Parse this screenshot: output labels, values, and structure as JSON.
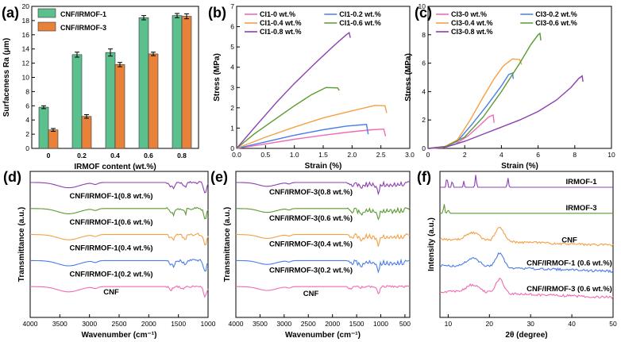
{
  "chart_data": [
    {
      "panel": "(a)",
      "type": "bar",
      "categories": [
        "0",
        "0.2",
        "0.4",
        "0.6",
        "0.8"
      ],
      "series": [
        {
          "name": "CNF/IRMOF-1",
          "color": "#5cc08e",
          "values": [
            5.8,
            13.2,
            13.5,
            18.4,
            18.7
          ],
          "errors": [
            0.2,
            0.35,
            0.5,
            0.3,
            0.3
          ]
        },
        {
          "name": "CNF/IRMOF-3",
          "color": "#e8823a",
          "values": [
            2.6,
            4.5,
            11.8,
            13.3,
            18.6
          ],
          "errors": [
            0.2,
            0.25,
            0.3,
            0.25,
            0.35
          ]
        }
      ],
      "xlabel": "IRMOF content (wt.%)",
      "ylabel": "Surfaceness  Ra (μm)",
      "ylim": [
        0,
        20
      ],
      "yticks": [
        "0",
        "2",
        "4",
        "6",
        "8",
        "10",
        "12",
        "14",
        "16",
        "18",
        "20"
      ]
    },
    {
      "panel": "(b)",
      "type": "line",
      "xlabel": "Strain (%)",
      "ylabel": "Stress (MPa)",
      "xlim": [
        0,
        3.0
      ],
      "ylim": [
        0,
        7
      ],
      "xticks": [
        "0.0",
        "0.5",
        "1.0",
        "1.5",
        "2.0",
        "2.5",
        "3.0"
      ],
      "yticks": [
        "0",
        "1",
        "2",
        "3",
        "4",
        "5",
        "6",
        "7"
      ],
      "series": [
        {
          "name": "CI1-0 wt.%",
          "color": "#f06bb5",
          "x": [
            0,
            0.5,
            1.0,
            1.5,
            2.0,
            2.35,
            2.55,
            2.58
          ],
          "y": [
            0,
            0.22,
            0.45,
            0.65,
            0.82,
            0.92,
            0.95,
            0.6
          ]
        },
        {
          "name": "CI1-0.2 wt.%",
          "color": "#4a7de8",
          "x": [
            0,
            0.5,
            1.0,
            1.5,
            1.9,
            2.25,
            2.28
          ],
          "y": [
            0,
            0.32,
            0.65,
            0.92,
            1.1,
            1.18,
            0.7
          ]
        },
        {
          "name": "CI1-0.4 wt.%",
          "color": "#f5a044",
          "x": [
            0,
            0.5,
            1.0,
            1.5,
            2.0,
            2.4,
            2.57,
            2.6
          ],
          "y": [
            0,
            0.55,
            1.05,
            1.5,
            1.85,
            2.12,
            2.1,
            1.75
          ]
        },
        {
          "name": "CI1-0.6 wt.%",
          "color": "#5a9a32",
          "x": [
            0,
            0.3,
            0.7,
            1.0,
            1.3,
            1.55,
            1.75,
            1.78
          ],
          "y": [
            0,
            0.7,
            1.5,
            2.1,
            2.65,
            3.0,
            2.98,
            2.85
          ]
        },
        {
          "name": "CI1-0.8 wt.%",
          "color": "#8b3fb0",
          "x": [
            0,
            0.3,
            0.7,
            1.0,
            1.4,
            1.7,
            1.9,
            1.95,
            1.97
          ],
          "y": [
            0,
            1.0,
            2.3,
            3.2,
            4.3,
            5.1,
            5.6,
            5.7,
            5.45
          ]
        }
      ]
    },
    {
      "panel": "(c)",
      "type": "line",
      "xlabel": "Strain (%)",
      "ylabel": "Stress (MPa)",
      "xlim": [
        0,
        10
      ],
      "ylim": [
        0,
        10
      ],
      "xticks": [
        "0",
        "2",
        "4",
        "6",
        "8",
        "10"
      ],
      "yticks": [
        "0",
        "2",
        "4",
        "6",
        "8",
        "10"
      ],
      "series": [
        {
          "name": "CI3-0 wt.%",
          "color": "#f06bb5",
          "x": [
            0,
            0.8,
            1.5,
            2.2,
            2.8,
            3.3,
            3.55,
            3.6
          ],
          "y": [
            0,
            0.05,
            0.3,
            0.9,
            1.6,
            2.2,
            2.35,
            1.8
          ]
        },
        {
          "name": "CI3-0.2 wt.%",
          "color": "#4a7de8",
          "x": [
            0,
            0.8,
            1.6,
            2.4,
            3.2,
            4.0,
            4.4,
            4.6,
            4.65
          ],
          "y": [
            0,
            0.05,
            0.5,
            1.7,
            3.0,
            4.4,
            5.2,
            5.3,
            4.9
          ]
        },
        {
          "name": "CI3-0.4 wt.%",
          "color": "#f5a044",
          "x": [
            0,
            0.8,
            1.6,
            2.3,
            3.0,
            3.6,
            4.1,
            4.6,
            5.0,
            5.1
          ],
          "y": [
            0,
            0.05,
            0.6,
            2.0,
            3.6,
            4.9,
            5.8,
            6.3,
            6.25,
            5.9
          ]
        },
        {
          "name": "CI3-0.6 wt.%",
          "color": "#5a9a32",
          "x": [
            0,
            1.0,
            2.0,
            3.0,
            4.0,
            5.0,
            5.6,
            6.0,
            6.1,
            6.15
          ],
          "y": [
            0,
            0.15,
            0.8,
            2.2,
            4.0,
            6.0,
            7.3,
            8.0,
            8.1,
            7.6
          ]
        },
        {
          "name": "CI3-0.8 wt.%",
          "color": "#8b3fb0",
          "x": [
            0,
            1.0,
            2.0,
            3.0,
            4.0,
            5.0,
            6.0,
            7.0,
            7.8,
            8.2,
            8.4,
            8.45
          ],
          "y": [
            0,
            0.1,
            0.5,
            1.0,
            1.5,
            2.0,
            2.6,
            3.4,
            4.3,
            4.9,
            5.1,
            4.7
          ]
        }
      ]
    },
    {
      "panel": "(d)",
      "type": "line",
      "xlabel": "Wavenumber (cm⁻¹)",
      "ylabel": "Transmittance (a.u.)",
      "xlim": [
        4000,
        1000
      ],
      "xticks": [
        "4000",
        "3500",
        "3000",
        "2500",
        "2000",
        "1500",
        "1000"
      ],
      "series": [
        {
          "name": "CNF/IRMOF-1(0.8 wt.%)",
          "color": "#8b3fb0"
        },
        {
          "name": "CNF/IRMOF-1(0.6 wt.%)",
          "color": "#5a9a32"
        },
        {
          "name": "CNF/IRMOF-1(0.4 wt.%)",
          "color": "#f5a044"
        },
        {
          "name": "CNF/IRMOF-1(0.2 wt.%)",
          "color": "#4a7de8"
        },
        {
          "name": "CNF",
          "color": "#f06bb5"
        }
      ]
    },
    {
      "panel": "(e)",
      "type": "line",
      "xlabel": "Wavenumber (cm⁻¹)",
      "ylabel": "Transmittance (a.u.)",
      "xlim": [
        4000,
        400
      ],
      "xticks": [
        "4000",
        "3500",
        "3000",
        "2500",
        "2000",
        "1500",
        "1000",
        "500"
      ],
      "series": [
        {
          "name": "CNF/IRMOF-3(0.8 wt.%)",
          "color": "#8b3fb0"
        },
        {
          "name": "CNF/IRMOF-3(0.6 wt.%)",
          "color": "#5a9a32"
        },
        {
          "name": "CNF/IRMOF-3(0.4 wt.%)",
          "color": "#f5a044"
        },
        {
          "name": "CNF/IRMOF-3(0.2 wt.%)",
          "color": "#4a7de8"
        },
        {
          "name": "CNF",
          "color": "#f06bb5"
        }
      ]
    },
    {
      "panel": "(f)",
      "type": "line",
      "xlabel": "2θ (degree)",
      "ylabel": "Intensity (a.u.)",
      "xlim": [
        8,
        50
      ],
      "xticks": [
        "10",
        "20",
        "30",
        "40",
        "50"
      ],
      "series": [
        {
          "name": "IRMOF-1",
          "color": "#8b3fb0"
        },
        {
          "name": "IRMOF-3",
          "color": "#5a9a32"
        },
        {
          "name": "CNF",
          "color": "#f5a044"
        },
        {
          "name": "CNF/IRMOF-1 (0.6 wt.%)",
          "color": "#4a7de8"
        },
        {
          "name": "CNF/IRMOF-3 (0.6 wt.%)",
          "color": "#f06bb5"
        }
      ]
    }
  ]
}
